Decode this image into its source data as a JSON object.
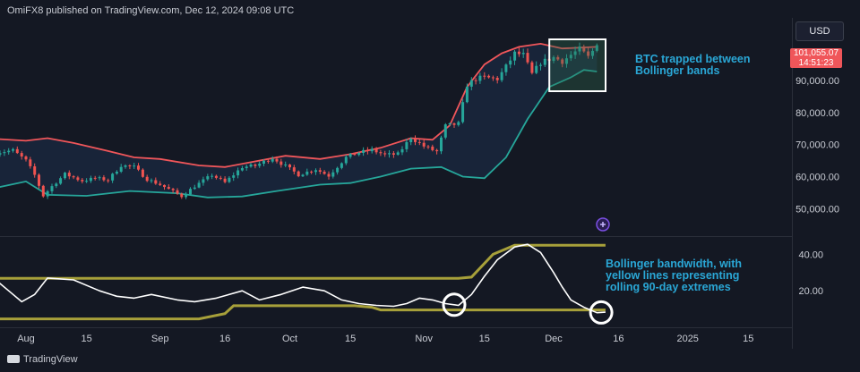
{
  "header": {
    "text": "OmiFX8 published on TradingView.com, Dec 12, 2024 09:08 UTC"
  },
  "currency_label": "USD",
  "price_tag": {
    "price": "101,055.07",
    "countdown": "14:51:23"
  },
  "annotations": {
    "top": [
      "BTC trapped between",
      "Bollinger bands"
    ],
    "bottom": [
      "Bollinger bandwidth, with",
      "yellow lines representing",
      "rolling 90-day extremes"
    ]
  },
  "footer": {
    "logo_text": "TradingView"
  },
  "colors": {
    "background": "#141823",
    "upper_band": "#f0565a",
    "lower_band": "#26a69a",
    "band_fill": "#1a2b45",
    "candle_up": "#26a69a",
    "candle_down": "#ef5350",
    "bandwidth_line": "#ffffff",
    "extreme_lines": "#a7a03a",
    "annotation": "#2aa7d6"
  },
  "chart_data": [
    {
      "type": "candlestick",
      "title": "",
      "y_ticks": [
        "50,000.00",
        "60,000.00",
        "70,000.00",
        "80,000.00",
        "90,000.00"
      ],
      "ylim": [
        42000,
        109000
      ],
      "last_price": 101055.07,
      "x_ticks": [
        {
          "label": "Aug",
          "x": "2024-08-01"
        },
        {
          "label": "15",
          "x": "2024-08-15"
        },
        {
          "label": "Sep",
          "x": "2024-09-01"
        },
        {
          "label": "16",
          "x": "2024-09-16"
        },
        {
          "label": "Oct",
          "x": "2024-10-01"
        },
        {
          "label": "15",
          "x": "2024-10-15"
        },
        {
          "label": "Nov",
          "x": "2024-11-01"
        },
        {
          "label": "15",
          "x": "2024-11-15"
        },
        {
          "label": "Dec",
          "x": "2024-12-01"
        },
        {
          "label": "16",
          "x": "2024-12-16"
        },
        {
          "label": "2025",
          "x": "2025-01-01"
        },
        {
          "label": "15",
          "x": "2025-01-15"
        }
      ],
      "close_anchors": [
        [
          "2024-07-25",
          67500
        ],
        [
          "2024-07-29",
          68200
        ],
        [
          "2024-08-01",
          65000
        ],
        [
          "2024-08-03",
          60500
        ],
        [
          "2024-08-05",
          54000
        ],
        [
          "2024-08-07",
          57000
        ],
        [
          "2024-08-10",
          60800
        ],
        [
          "2024-08-14",
          58700
        ],
        [
          "2024-08-17",
          59500
        ],
        [
          "2024-08-20",
          59000
        ],
        [
          "2024-08-23",
          63500
        ],
        [
          "2024-08-26",
          63000
        ],
        [
          "2024-08-29",
          59200
        ],
        [
          "2024-09-01",
          57500
        ],
        [
          "2024-09-06",
          53900
        ],
        [
          "2024-09-09",
          57000
        ],
        [
          "2024-09-13",
          60500
        ],
        [
          "2024-09-16",
          58200
        ],
        [
          "2024-09-20",
          63000
        ],
        [
          "2024-09-23",
          63400
        ],
        [
          "2024-09-27",
          65900
        ],
        [
          "2024-09-30",
          63300
        ],
        [
          "2024-10-03",
          60600
        ],
        [
          "2024-10-07",
          62300
        ],
        [
          "2024-10-10",
          60300
        ],
        [
          "2024-10-14",
          66000
        ],
        [
          "2024-10-17",
          67500
        ],
        [
          "2024-10-20",
          68300
        ],
        [
          "2024-10-23",
          66800
        ],
        [
          "2024-10-26",
          67000
        ],
        [
          "2024-10-29",
          72200
        ],
        [
          "2024-11-01",
          69500
        ],
        [
          "2024-11-04",
          67800
        ],
        [
          "2024-11-06",
          75800
        ],
        [
          "2024-11-09",
          76500
        ],
        [
          "2024-11-11",
          88700
        ],
        [
          "2024-11-13",
          90500
        ],
        [
          "2024-11-15",
          91000
        ],
        [
          "2024-11-18",
          90500
        ],
        [
          "2024-11-20",
          94300
        ],
        [
          "2024-11-22",
          98500
        ],
        [
          "2024-11-24",
          98000
        ],
        [
          "2024-11-26",
          92000
        ],
        [
          "2024-11-28",
          95600
        ],
        [
          "2024-12-01",
          97200
        ],
        [
          "2024-12-03",
          96000
        ],
        [
          "2024-12-05",
          98000
        ],
        [
          "2024-12-07",
          99800
        ],
        [
          "2024-12-09",
          97300
        ],
        [
          "2024-12-11",
          101055
        ]
      ],
      "upper_band": [
        [
          "2024-07-25",
          71800
        ],
        [
          "2024-08-01",
          71200
        ],
        [
          "2024-08-06",
          72000
        ],
        [
          "2024-08-12",
          70500
        ],
        [
          "2024-08-20",
          68000
        ],
        [
          "2024-08-26",
          66000
        ],
        [
          "2024-09-01",
          65500
        ],
        [
          "2024-09-10",
          63500
        ],
        [
          "2024-09-16",
          63000
        ],
        [
          "2024-09-22",
          64500
        ],
        [
          "2024-09-30",
          66500
        ],
        [
          "2024-10-08",
          65500
        ],
        [
          "2024-10-15",
          67000
        ],
        [
          "2024-10-22",
          69000
        ],
        [
          "2024-10-29",
          72000
        ],
        [
          "2024-11-03",
          71500
        ],
        [
          "2024-11-07",
          76000
        ],
        [
          "2024-11-11",
          88000
        ],
        [
          "2024-11-15",
          95000
        ],
        [
          "2024-11-19",
          98500
        ],
        [
          "2024-11-23",
          100500
        ],
        [
          "2024-11-28",
          101500
        ],
        [
          "2024-12-03",
          100000
        ],
        [
          "2024-12-11",
          100500
        ]
      ],
      "lower_band": [
        [
          "2024-07-25",
          56500
        ],
        [
          "2024-08-01",
          58500
        ],
        [
          "2024-08-06",
          54300
        ],
        [
          "2024-08-15",
          54000
        ],
        [
          "2024-08-25",
          55500
        ],
        [
          "2024-09-05",
          54800
        ],
        [
          "2024-09-12",
          53500
        ],
        [
          "2024-09-20",
          53800
        ],
        [
          "2024-09-28",
          55500
        ],
        [
          "2024-10-08",
          57500
        ],
        [
          "2024-10-15",
          58000
        ],
        [
          "2024-10-22",
          60000
        ],
        [
          "2024-10-29",
          62500
        ],
        [
          "2024-11-05",
          63000
        ],
        [
          "2024-11-10",
          60000
        ],
        [
          "2024-11-15",
          59500
        ],
        [
          "2024-11-20",
          66000
        ],
        [
          "2024-11-25",
          78000
        ],
        [
          "2024-11-30",
          88000
        ],
        [
          "2024-12-05",
          91000
        ],
        [
          "2024-12-08",
          93300
        ],
        [
          "2024-12-11",
          92800
        ]
      ],
      "highlight_box": {
        "start": "2024-11-30",
        "end": "2024-12-13"
      }
    },
    {
      "type": "line",
      "title": "",
      "y_ticks": [
        "20.00",
        "40.00"
      ],
      "ylim": [
        0,
        50
      ],
      "bandwidth": [
        [
          "2024-07-25",
          26
        ],
        [
          "2024-07-28",
          20
        ],
        [
          "2024-07-31",
          14
        ],
        [
          "2024-08-03",
          18
        ],
        [
          "2024-08-06",
          27
        ],
        [
          "2024-08-12",
          26
        ],
        [
          "2024-08-18",
          20
        ],
        [
          "2024-08-22",
          17
        ],
        [
          "2024-08-26",
          16
        ],
        [
          "2024-08-30",
          18
        ],
        [
          "2024-09-05",
          15
        ],
        [
          "2024-09-09",
          14
        ],
        [
          "2024-09-14",
          16
        ],
        [
          "2024-09-20",
          20
        ],
        [
          "2024-09-24",
          15
        ],
        [
          "2024-09-29",
          18
        ],
        [
          "2024-10-04",
          22
        ],
        [
          "2024-10-09",
          20
        ],
        [
          "2024-10-13",
          15
        ],
        [
          "2024-10-17",
          13
        ],
        [
          "2024-10-21",
          12
        ],
        [
          "2024-10-25",
          11.5
        ],
        [
          "2024-10-28",
          13
        ],
        [
          "2024-10-31",
          16
        ],
        [
          "2024-11-03",
          15
        ],
        [
          "2024-11-06",
          13
        ],
        [
          "2024-11-09",
          12
        ],
        [
          "2024-11-12",
          18
        ],
        [
          "2024-11-15",
          28
        ],
        [
          "2024-11-18",
          37
        ],
        [
          "2024-11-22",
          44
        ],
        [
          "2024-11-25",
          45.5
        ],
        [
          "2024-11-28",
          41
        ],
        [
          "2024-12-01",
          30
        ],
        [
          "2024-12-03",
          22
        ],
        [
          "2024-12-05",
          15
        ],
        [
          "2024-12-08",
          11
        ],
        [
          "2024-12-11",
          8
        ],
        [
          "2024-12-13",
          8.3
        ]
      ],
      "max_extreme": [
        [
          "2024-07-25",
          26.8
        ],
        [
          "2024-11-09",
          26.8
        ],
        [
          "2024-11-12",
          27.5
        ],
        [
          "2024-11-17",
          40
        ],
        [
          "2024-11-22",
          45
        ],
        [
          "2024-12-13",
          45
        ]
      ],
      "min_extreme": [
        [
          "2024-07-25",
          4.6
        ],
        [
          "2024-09-10",
          4.6
        ],
        [
          "2024-09-16",
          7.5
        ],
        [
          "2024-09-18",
          11.8
        ],
        [
          "2024-10-16",
          11.8
        ],
        [
          "2024-10-20",
          11
        ],
        [
          "2024-10-22",
          9.5
        ],
        [
          "2024-12-13",
          9.5
        ]
      ],
      "circled_lows": [
        "2024-11-08",
        "2024-12-12"
      ]
    }
  ]
}
